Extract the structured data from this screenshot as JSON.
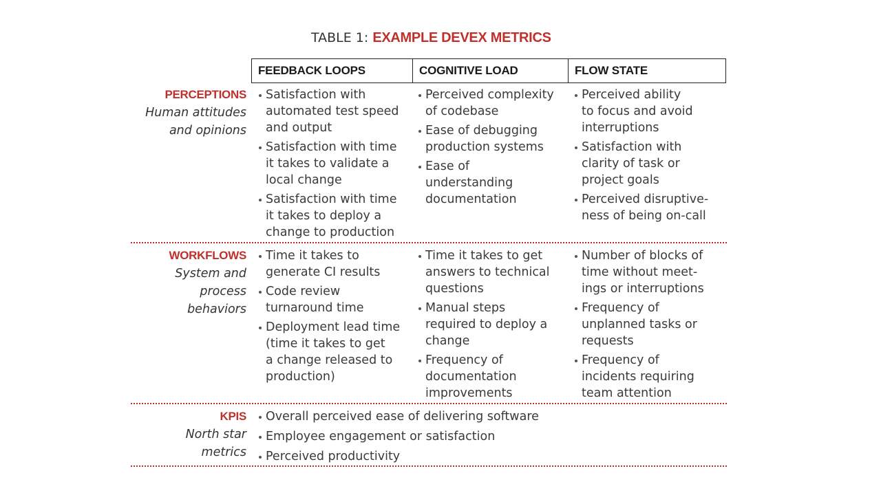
{
  "title": {
    "prefix": "TABLE 1: ",
    "accent": "EXAMPLE DEVEX METRICS"
  },
  "columns": [
    "FEEDBACK LOOPS",
    "COGNITIVE LOAD",
    "FLOW STATE"
  ],
  "rows": [
    {
      "name": "PERCEPTIONS",
      "desc": [
        "Human attitudes",
        "and opinions"
      ],
      "cells": [
        [
          [
            "Satisfaction with",
            "automated test  speed",
            "and output"
          ],
          [
            "Satisfaction with time",
            "it takes to validate a",
            "local change"
          ],
          [
            "Satisfaction with time",
            "it takes to deploy a",
            "change to production"
          ]
        ],
        [
          [
            "Perceived complexity",
            "of codebase"
          ],
          [
            "Ease of debugging",
            "production systems"
          ],
          [
            "Ease of",
            "understanding",
            "documentation"
          ]
        ],
        [
          [
            "Perceived ability",
            "to focus and avoid",
            "interruptions"
          ],
          [
            "Satisfaction with",
            "clarity of task or",
            "project goals"
          ],
          [
            "Perceived disruptive-",
            "ness of being on-call"
          ]
        ]
      ]
    },
    {
      "name": "WORKFLOWS",
      "desc": [
        "System and",
        "process",
        "behaviors"
      ],
      "cells": [
        [
          [
            "Time it takes to",
            "generate CI results"
          ],
          [
            "Code review",
            "turnaround time"
          ],
          [
            "Deployment lead time",
            "(time it takes to get",
            "a change released to",
            "production)"
          ]
        ],
        [
          [
            "Time it takes to get",
            "answers to technical",
            "questions"
          ],
          [
            "Manual steps",
            "required to deploy a",
            "change"
          ],
          [
            "Frequency of",
            "documentation",
            "improvements"
          ]
        ],
        [
          [
            "Number of blocks of",
            "time without meet-",
            "ings or interruptions"
          ],
          [
            "Frequency of",
            "unplanned tasks or",
            "requests"
          ],
          [
            "Frequency of",
            "incidents requiring",
            "team attention"
          ]
        ]
      ]
    }
  ],
  "kpis": {
    "name": "KPIS",
    "desc": [
      "North star",
      "metrics"
    ],
    "items": [
      "Overall perceived ease of delivering software",
      "Employee engagement or satisfaction",
      "Perceived productivity"
    ]
  }
}
